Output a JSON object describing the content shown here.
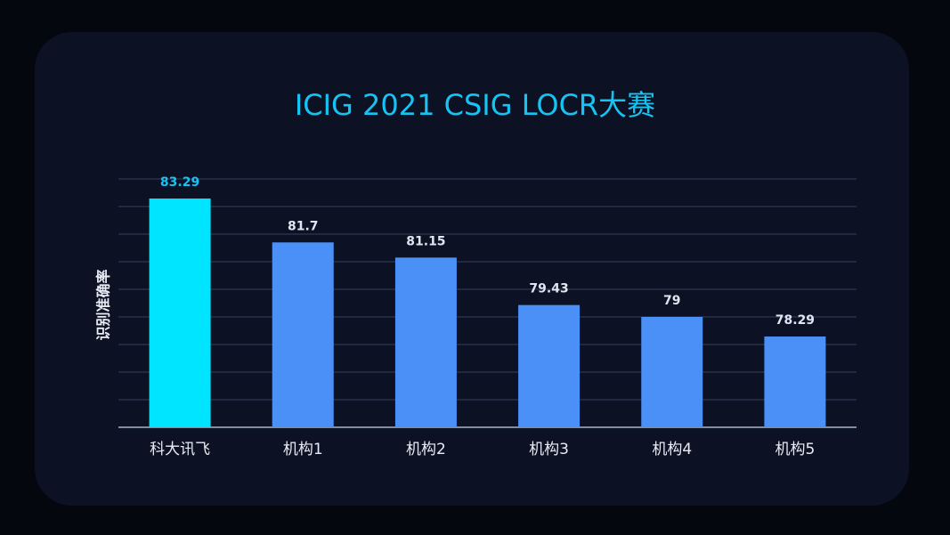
{
  "chart_data": {
    "type": "bar",
    "title": "ICIG 2021 CSIG LOCR大赛",
    "xlabel": "",
    "ylabel": "识别准确率",
    "categories": [
      "科大讯飞",
      "机构1",
      "机构2",
      "机构3",
      "机构4",
      "机构5"
    ],
    "values": [
      83.29,
      81.7,
      81.15,
      79.43,
      79,
      78.29
    ],
    "value_labels": [
      "83.29",
      "81.7",
      "81.15",
      "79.43",
      "79",
      "78.29"
    ],
    "ylim": [
      75,
      84
    ],
    "grid": true,
    "highlight_index": 0,
    "colors": {
      "highlight_bar": "#00e5ff",
      "highlight_label": "#16c3f2",
      "bar": "#4a90f7",
      "label": "#dfe6f0",
      "title": "#16c3f2",
      "grid": "#26314a",
      "axis": "#aab4c8",
      "tick_label": "#e8edf5",
      "background": "#0c1224"
    }
  }
}
